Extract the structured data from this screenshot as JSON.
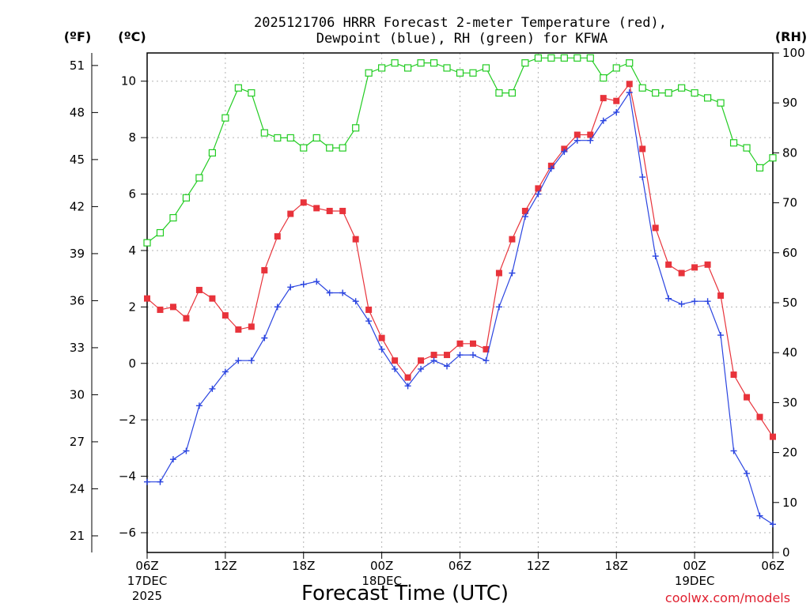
{
  "chart_data": {
    "type": "line",
    "title_line1": "2025121706 HRRR Forecast 2-meter Temperature (red),",
    "title_line2": "Dewpoint (blue), RH (green) for KFWA",
    "xlabel": "Forecast Time (UTC)",
    "credit": "coolwx.com/models",
    "unit_f": "(ºF)",
    "unit_c": "(ºC)",
    "unit_rh": "(RH)",
    "ylim_c": [
      -6.7,
      11
    ],
    "ylim_rh": [
      0,
      100
    ],
    "x_range_hours": [
      0,
      48
    ],
    "c_ticks": [
      "-6",
      "-4",
      "-2",
      "0",
      "2",
      "4",
      "6",
      "8",
      "10"
    ],
    "f_ticks": [
      "21",
      "24",
      "27",
      "30",
      "33",
      "36",
      "39",
      "42",
      "45",
      "48",
      "51"
    ],
    "rh_ticks": [
      "0",
      "10",
      "20",
      "30",
      "40",
      "50",
      "60",
      "70",
      "80",
      "90",
      "100"
    ],
    "x_ticks": [
      {
        "hour": 0,
        "label": "06Z",
        "date1": "17DEC",
        "date2": "2025"
      },
      {
        "hour": 6,
        "label": "12Z"
      },
      {
        "hour": 12,
        "label": "18Z"
      },
      {
        "hour": 18,
        "label": "00Z",
        "date1": "18DEC"
      },
      {
        "hour": 24,
        "label": "06Z"
      },
      {
        "hour": 30,
        "label": "12Z"
      },
      {
        "hour": 36,
        "label": "18Z"
      },
      {
        "hour": 42,
        "label": "00Z",
        "date1": "19DEC"
      },
      {
        "hour": 48,
        "label": "06Z"
      }
    ],
    "hours": [
      0,
      1,
      2,
      3,
      4,
      5,
      6,
      7,
      8,
      9,
      10,
      11,
      12,
      13,
      14,
      15,
      16,
      17,
      18,
      19,
      20,
      21,
      22,
      23,
      24,
      25,
      26,
      27,
      28,
      29,
      30,
      31,
      32,
      33,
      34,
      35,
      36,
      37,
      38,
      39,
      40,
      41,
      42,
      43,
      44,
      45,
      46,
      47,
      48
    ],
    "series": [
      {
        "name": "Temperature",
        "color": "#e8333b",
        "axis": "celsius",
        "marker": "filled-square",
        "values": [
          2.3,
          1.9,
          2.0,
          1.6,
          2.6,
          2.3,
          1.7,
          1.2,
          1.3,
          3.3,
          4.5,
          5.3,
          5.7,
          5.5,
          5.4,
          5.4,
          4.4,
          1.9,
          0.9,
          0.1,
          -0.5,
          0.1,
          0.3,
          0.3,
          0.7,
          0.7,
          0.5,
          3.2,
          4.4,
          5.4,
          6.2,
          7.0,
          7.6,
          8.1,
          8.1,
          9.4,
          9.3,
          9.9,
          7.6,
          4.8,
          3.5,
          3.2,
          3.4,
          3.5,
          2.4,
          -0.4,
          -1.2,
          -1.9,
          -2.6
        ]
      },
      {
        "name": "Dewpoint",
        "color": "#2a44e0",
        "axis": "celsius",
        "marker": "plus",
        "values": [
          -4.2,
          -4.2,
          -3.4,
          -3.1,
          -1.5,
          -0.9,
          -0.3,
          0.1,
          0.1,
          0.9,
          2.0,
          2.7,
          2.8,
          2.9,
          2.5,
          2.5,
          2.2,
          1.5,
          0.5,
          -0.2,
          -0.8,
          -0.2,
          0.1,
          -0.1,
          0.3,
          0.3,
          0.1,
          2.0,
          3.2,
          5.2,
          6.0,
          6.9,
          7.5,
          7.9,
          7.9,
          8.6,
          8.9,
          9.6,
          6.6,
          3.8,
          2.3,
          2.1,
          2.2,
          2.2,
          1.0,
          -3.1,
          -3.9,
          -5.4,
          -5.7
        ]
      },
      {
        "name": "RH",
        "color": "#22cc22",
        "axis": "rh",
        "marker": "open-square",
        "values": [
          62,
          64,
          67,
          71,
          75,
          80,
          87,
          93,
          92,
          84,
          83,
          83,
          81,
          83,
          81,
          81,
          85,
          96,
          97,
          98,
          97,
          98,
          98,
          97,
          96,
          96,
          97,
          92,
          92,
          98,
          99,
          99,
          99,
          99,
          99,
          95,
          97,
          98,
          93,
          92,
          92,
          93,
          92,
          91,
          90,
          82,
          81,
          77,
          79
        ]
      }
    ]
  }
}
